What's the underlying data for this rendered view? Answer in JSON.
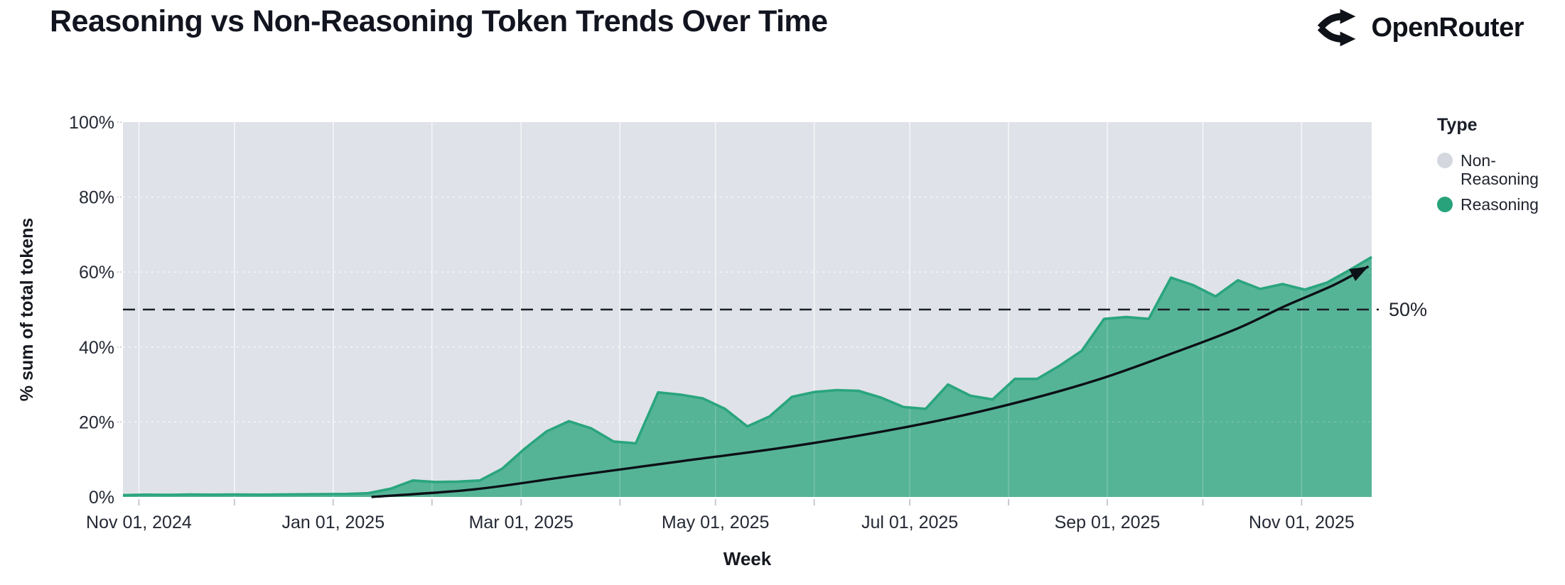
{
  "page": {
    "title": "Reasoning vs Non-Reasoning Token Trends Over Time",
    "brand": {
      "name": "OpenRouter",
      "icon": "openrouter-split-arrows-icon"
    }
  },
  "colors": {
    "reasoning_fill": "#56b496",
    "reasoning_stroke": "#2aa57e",
    "non_reasoning_fill": "#dfe2e8",
    "legend_non_reasoning_dot": "#d4d7dd",
    "legend_reasoning_dot": "#27a27b",
    "grid_line": "#ffffff",
    "annotation_ink": "#1a1e28",
    "tick_ink": "#242934",
    "axis_tick_mark": "#c7cad1"
  },
  "chart_data": {
    "type": "area",
    "stacked_percent": true,
    "title": "Reasoning vs Non-Reasoning Token Trends Over Time",
    "xlabel": "Week",
    "ylabel": "% sum of total tokens",
    "ylim": [
      0,
      100
    ],
    "yticks": [
      {
        "value": 0,
        "label": "0%"
      },
      {
        "value": 20,
        "label": "20%"
      },
      {
        "value": 40,
        "label": "40%"
      },
      {
        "value": 60,
        "label": "60%"
      },
      {
        "value": 80,
        "label": "80%"
      },
      {
        "value": 100,
        "label": "100%"
      }
    ],
    "x_domain_days": [
      0,
      392
    ],
    "x_start_date": "2024-10-27",
    "xticks_labeled": [
      {
        "day": 5,
        "label": "Nov 01, 2024"
      },
      {
        "day": 66,
        "label": "Jan 01, 2025"
      },
      {
        "day": 125,
        "label": "Mar 01, 2025"
      },
      {
        "day": 186,
        "label": "May 01, 2025"
      },
      {
        "day": 247,
        "label": "Jul 01, 2025"
      },
      {
        "day": 309,
        "label": "Sep 01, 2025"
      },
      {
        "day": 370,
        "label": "Nov 01, 2025"
      }
    ],
    "xticks_minor_days": [
      5,
      35,
      66,
      97,
      125,
      156,
      186,
      217,
      247,
      278,
      309,
      339,
      370
    ],
    "grid": true,
    "legend": {
      "title": "Type",
      "position": "right",
      "items": [
        {
          "label": "Non-Reasoning",
          "color": "#d4d7dd"
        },
        {
          "label": "Reasoning",
          "color": "#27a27b"
        }
      ]
    },
    "series": [
      {
        "name": "Reasoning",
        "unit": "% of total tokens",
        "cadence": "weekly",
        "weeks": [
          "2024-10-27",
          "2024-11-03",
          "2024-11-10",
          "2024-11-17",
          "2024-11-24",
          "2024-12-01",
          "2024-12-08",
          "2024-12-15",
          "2024-12-22",
          "2024-12-29",
          "2025-01-05",
          "2025-01-12",
          "2025-01-19",
          "2025-01-26",
          "2025-02-02",
          "2025-02-09",
          "2025-02-16",
          "2025-02-23",
          "2025-03-02",
          "2025-03-09",
          "2025-03-16",
          "2025-03-23",
          "2025-03-30",
          "2025-04-06",
          "2025-04-13",
          "2025-04-20",
          "2025-04-27",
          "2025-05-04",
          "2025-05-11",
          "2025-05-18",
          "2025-05-25",
          "2025-06-01",
          "2025-06-08",
          "2025-06-15",
          "2025-06-22",
          "2025-06-29",
          "2025-07-06",
          "2025-07-13",
          "2025-07-20",
          "2025-07-27",
          "2025-08-03",
          "2025-08-10",
          "2025-08-17",
          "2025-08-24",
          "2025-08-31",
          "2025-09-07",
          "2025-09-14",
          "2025-09-21",
          "2025-09-28",
          "2025-10-05",
          "2025-10-12",
          "2025-10-19",
          "2025-10-26",
          "2025-11-02",
          "2025-11-09",
          "2025-11-16",
          "2025-11-23"
        ],
        "values": [
          0.5,
          0.6,
          0.55,
          0.65,
          0.6,
          0.65,
          0.6,
          0.65,
          0.7,
          0.75,
          0.8,
          1.0,
          2.2,
          4.4,
          4.0,
          4.1,
          4.4,
          7.5,
          12.8,
          17.5,
          20.2,
          18.3,
          14.8,
          14.3,
          27.9,
          27.3,
          26.3,
          23.5,
          18.8,
          21.5,
          26.7,
          28.0,
          28.5,
          28.3,
          26.5,
          24.0,
          23.5,
          30.0,
          27.0,
          26.0,
          31.5,
          31.5,
          35.0,
          39.0,
          47.5,
          48.0,
          47.5,
          58.5,
          56.5,
          53.5,
          57.8,
          55.5,
          56.8,
          55.3,
          57.2,
          60.5,
          64.0
        ]
      },
      {
        "name": "Non-Reasoning",
        "definition": "remainder to 100% (background area)"
      }
    ],
    "annotations": {
      "reference_line": {
        "value": 50,
        "label": "50%",
        "style": "dashed"
      },
      "trend_arrow": {
        "description": "smooth rising trend curve ending in an arrowhead",
        "points_day_value": [
          [
            78,
            0
          ],
          [
            110,
            2
          ],
          [
            140,
            5.5
          ],
          [
            175,
            9.5
          ],
          [
            210,
            13.5
          ],
          [
            245,
            18.5
          ],
          [
            275,
            24
          ],
          [
            305,
            31
          ],
          [
            330,
            38.5
          ],
          [
            350,
            45
          ],
          [
            365,
            51
          ],
          [
            380,
            56.5
          ],
          [
            391,
            61.5
          ]
        ]
      }
    }
  }
}
